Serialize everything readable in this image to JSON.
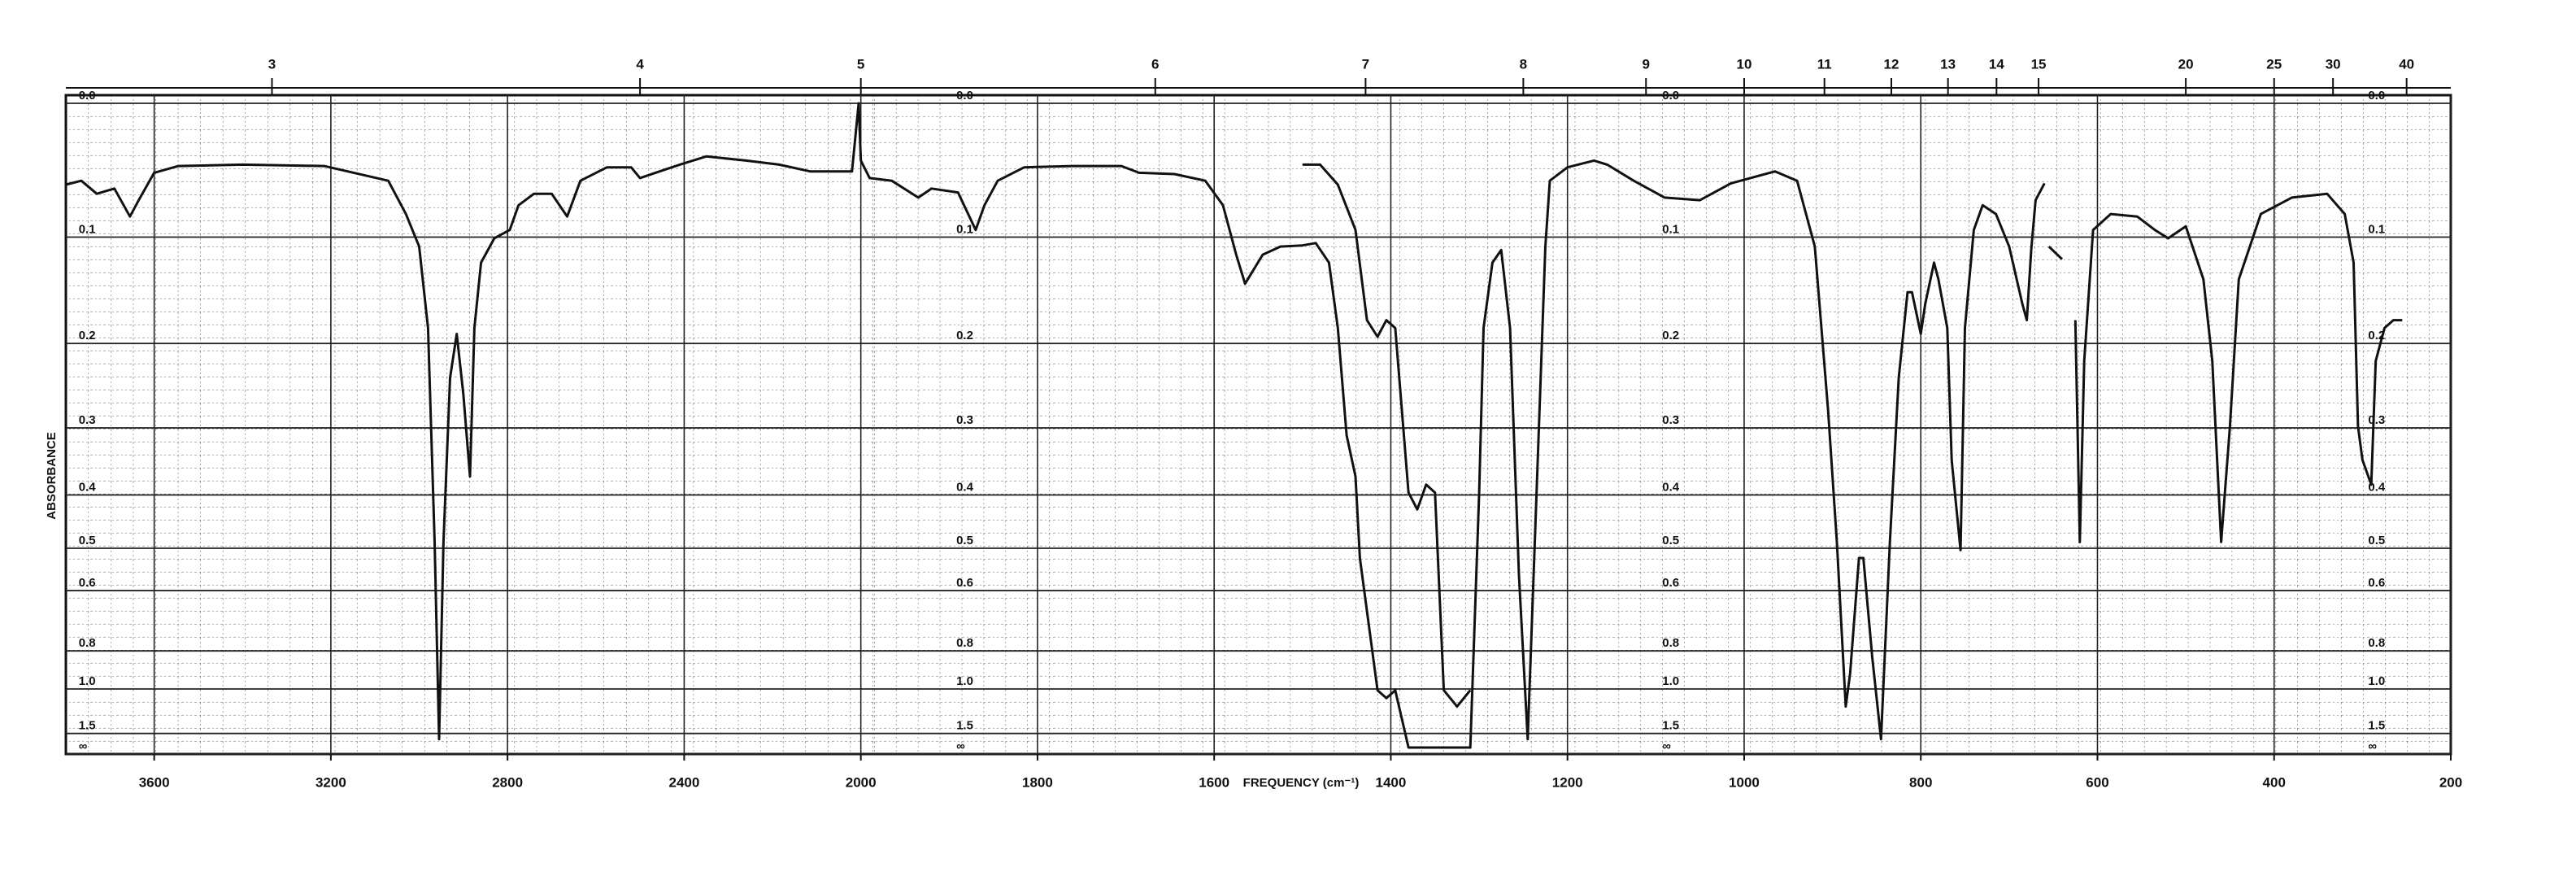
{
  "chart_data": {
    "type": "line",
    "x_label": "FREQUENCY (cm⁻¹)",
    "y_label": "ABSORBANCE",
    "y_scale": "absorbance",
    "x_scale_break": 2000,
    "xlim": [
      3800,
      200
    ],
    "xticks": [
      3600,
      3200,
      2800,
      2400,
      2000,
      1800,
      1600,
      1400,
      1200,
      1000,
      800,
      600,
      400,
      200
    ],
    "x2ticks": [
      3,
      4,
      5,
      6,
      7,
      8,
      9,
      10,
      11,
      12,
      13,
      14,
      15,
      20,
      25,
      30,
      40
    ],
    "ylim": [
      0,
      null
    ],
    "yticks": [
      {
        "value": 0,
        "label": "0.0"
      },
      0.1,
      0.2,
      0.3,
      0.4,
      0.5,
      0.6,
      0.8,
      {
        "value": 1,
        "label": "1.0"
      },
      1.5,
      {
        "value": null,
        "label": "∞"
      }
    ],
    "grid": true,
    "series": [
      {
        "color": "#111111",
        "x": [
          3800,
          3765,
          3730,
          3690,
          3655,
          3635,
          3600,
          3545,
          3400,
          3215,
          3070,
          3030,
          3000,
          2980,
          2965,
          2955,
          2945,
          2930,
          2915,
          2900,
          2885,
          2875,
          2860,
          2830,
          2795,
          2775,
          2740,
          2700,
          2665,
          2635,
          2575,
          2520,
          2500,
          2465,
          2410,
          2350,
          2260,
          2185,
          2115,
          2020,
          2005,
          2000,
          1990,
          1965,
          1935,
          1920,
          1890,
          1870,
          1860,
          1845,
          1815,
          1760,
          1705,
          1685,
          1645,
          1610,
          1590,
          1575,
          1565,
          1545,
          1525,
          1500,
          1485,
          1470,
          1460,
          1450,
          1440,
          1435,
          1425,
          1415,
          1405,
          1395,
          1380,
          1310,
          1300,
          1295,
          1285,
          1275,
          1265,
          1255,
          1245,
          1235,
          1225,
          1220,
          1200,
          1170,
          1155,
          1125,
          1090,
          1050,
          1015,
          965,
          940,
          920,
          905,
          895,
          885,
          880,
          870,
          865,
          855,
          845,
          835,
          825,
          815,
          810,
          800,
          795,
          785,
          780,
          770,
          765,
          755,
          750,
          740,
          730,
          715,
          700,
          685,
          680,
          675,
          670,
          660,
          null,
          655,
          640,
          null,
          625,
          620,
          615,
          605,
          585,
          555,
          535,
          520,
          500,
          480,
          470,
          460,
          450,
          440,
          415,
          380,
          340,
          320,
          310,
          305,
          300,
          290,
          285,
          275,
          265,
          255
        ],
        "values": [
          0.058,
          0.055,
          0.065,
          0.061,
          0.083,
          0.07,
          0.049,
          0.044,
          0.043,
          0.044,
          0.055,
          0.081,
          0.108,
          0.184,
          0.487,
          1.64,
          0.487,
          0.238,
          0.19,
          0.257,
          0.37,
          0.184,
          0.122,
          0.101,
          0.094,
          0.074,
          0.065,
          0.065,
          0.083,
          0.055,
          0.045,
          0.045,
          0.053,
          0.049,
          0.043,
          0.037,
          0.04,
          0.043,
          0.048,
          0.048,
          0.0,
          0.04,
          0.053,
          0.055,
          0.068,
          0.061,
          0.064,
          0.094,
          0.074,
          0.055,
          0.045,
          0.044,
          0.044,
          0.049,
          0.05,
          0.055,
          0.074,
          0.115,
          0.141,
          0.115,
          0.108,
          0.107,
          0.105,
          0.122,
          0.184,
          0.31,
          0.37,
          0.521,
          0.701,
          1.009,
          1.066,
          1.009,
          2.0,
          2.0,
          0.396,
          0.184,
          0.122,
          0.111,
          0.184,
          0.56,
          1.64,
          0.396,
          0.108,
          0.055,
          0.045,
          0.04,
          0.043,
          0.055,
          0.068,
          0.07,
          0.057,
          0.048,
          0.055,
          0.108,
          0.277,
          0.487,
          1.137,
          0.907,
          0.521,
          0.521,
          0.827,
          1.64,
          0.487,
          0.238,
          0.149,
          0.149,
          0.19,
          0.16,
          0.122,
          0.137,
          0.184,
          0.345,
          0.504,
          0.184,
          0.094,
          0.074,
          0.081,
          0.108,
          0.16,
          0.176,
          0.111,
          0.07,
          0.057,
          null,
          0.108,
          0.119,
          null,
          0.176,
          0.487,
          0.219,
          0.094,
          0.081,
          0.083,
          0.094,
          0.101,
          0.091,
          0.137,
          0.219,
          0.487,
          0.298,
          0.137,
          0.081,
          0.068,
          0.065,
          0.081,
          0.122,
          0.298,
          0.345,
          0.383,
          0.219,
          0.184,
          0.176,
          0.176
        ]
      },
      {
        "color": "#111111",
        "x": [
          1500,
          1480,
          1460,
          1440,
          1427,
          1415,
          1405,
          1395,
          1380,
          1370,
          1360,
          1350,
          1340,
          1325,
          1310
        ],
        "values": [
          0.043,
          0.043,
          0.058,
          0.094,
          0.176,
          0.193,
          0.176,
          0.184,
          0.396,
          0.425,
          0.383,
          0.396,
          1.009,
          1.137,
          1.009
        ]
      }
    ]
  }
}
